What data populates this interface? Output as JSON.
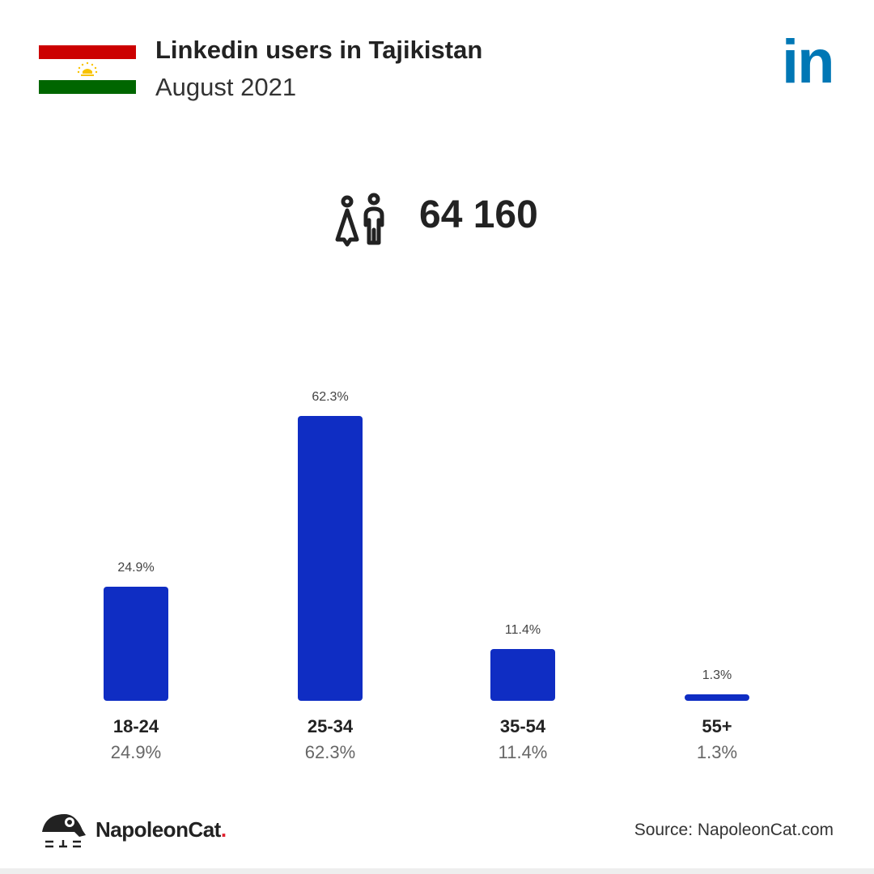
{
  "header": {
    "title": "Linkedin users in Tajikistan",
    "subtitle": "August 2021",
    "logo_text": "in"
  },
  "total": {
    "icon": "users-icon",
    "value": "64 160"
  },
  "colors": {
    "bar": "#0f2dc3",
    "linkedin": "#0077b5"
  },
  "chart_data": {
    "type": "bar",
    "title": "Linkedin users in Tajikistan",
    "categories": [
      "18-24",
      "25-34",
      "35-54",
      "55+"
    ],
    "values": [
      24.9,
      62.3,
      11.4,
      1.3
    ],
    "value_labels": [
      "24.9%",
      "62.3%",
      "11.4%",
      "1.3%"
    ],
    "ylim": [
      0,
      62.3
    ],
    "grid": false
  },
  "footer": {
    "brand": "NapoleonCat",
    "brand_dot": ".",
    "source": "Source: NapoleonCat.com"
  }
}
